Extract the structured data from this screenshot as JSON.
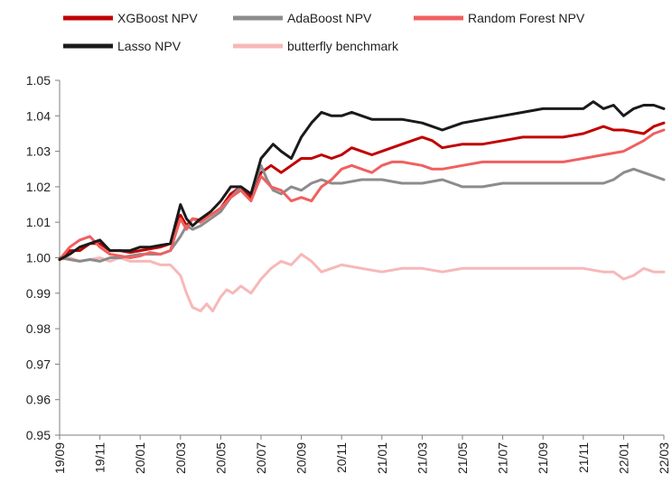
{
  "chart_data": {
    "type": "line",
    "title": "",
    "xlabel": "",
    "ylabel": "",
    "ylim": [
      0.95,
      1.05
    ],
    "yticks": [
      "1.05",
      "1.04",
      "1.03",
      "1.02",
      "1.01",
      "1.00",
      "0.99",
      "0.98",
      "0.97",
      "0.96",
      "0.95"
    ],
    "ytick_values": [
      1.05,
      1.04,
      1.03,
      1.02,
      1.01,
      1.0,
      0.99,
      0.98,
      0.97,
      0.96,
      0.95
    ],
    "xticks": [
      "19/09",
      "19/11",
      "20/01",
      "20/03",
      "20/05",
      "20/07",
      "20/09",
      "20/11",
      "21/01",
      "21/03",
      "21/05",
      "21/07",
      "21/09",
      "21/11",
      "22/01",
      "22/03"
    ],
    "x_months": [
      0,
      2,
      4,
      6,
      8,
      10,
      12,
      14,
      16,
      18,
      20,
      22,
      24,
      26,
      28,
      30
    ],
    "xlim": [
      0,
      30
    ],
    "legend_position": "top",
    "series": [
      {
        "name": "XGBoost NPV",
        "color": "#c00000",
        "width": 3,
        "x": [
          0,
          0.5,
          1,
          1.5,
          2,
          2.5,
          3,
          3.5,
          4,
          4.5,
          5,
          5.5,
          6,
          6.3,
          6.6,
          7,
          7.5,
          8,
          8.5,
          9,
          9.5,
          10,
          10.5,
          11,
          11.5,
          12,
          12.5,
          13,
          13.5,
          14,
          14.5,
          15,
          15.5,
          16,
          17,
          18,
          18.5,
          19,
          20,
          21,
          22,
          23,
          24,
          25,
          26,
          27,
          27.5,
          28,
          29,
          29.5,
          30
        ],
        "y": [
          0.9995,
          1.002,
          1.002,
          1.004,
          1.004,
          1.002,
          1.002,
          1.0015,
          1.002,
          1.0025,
          1.003,
          1.004,
          1.012,
          1.009,
          1.011,
          1.0105,
          1.012,
          1.014,
          1.018,
          1.02,
          1.017,
          1.024,
          1.026,
          1.024,
          1.026,
          1.028,
          1.028,
          1.029,
          1.028,
          1.029,
          1.031,
          1.03,
          1.029,
          1.03,
          1.032,
          1.034,
          1.033,
          1.031,
          1.032,
          1.032,
          1.033,
          1.034,
          1.034,
          1.034,
          1.035,
          1.037,
          1.036,
          1.036,
          1.035,
          1.037,
          1.038
        ]
      },
      {
        "name": "AdaBoost NPV",
        "color": "#8c8c8c",
        "width": 3,
        "x": [
          0,
          0.5,
          1,
          1.5,
          2,
          2.5,
          3,
          3.5,
          4,
          4.5,
          5,
          5.5,
          6,
          6.3,
          6.6,
          7,
          7.5,
          8,
          8.5,
          9,
          9.5,
          10,
          10.3,
          10.6,
          11,
          11.5,
          12,
          12.5,
          13,
          13.5,
          14,
          15,
          16,
          17,
          18,
          19,
          20,
          21,
          22,
          23,
          24,
          25,
          26,
          27,
          27.5,
          28,
          28.5,
          29,
          29.5,
          30
        ],
        "y": [
          1.0,
          0.9995,
          0.999,
          0.9995,
          0.999,
          1.0,
          1.0,
          1.0005,
          1.001,
          1.001,
          1.001,
          1.002,
          1.006,
          1.009,
          1.008,
          1.009,
          1.011,
          1.013,
          1.017,
          1.02,
          1.018,
          1.026,
          1.022,
          1.019,
          1.018,
          1.02,
          1.019,
          1.021,
          1.022,
          1.021,
          1.021,
          1.022,
          1.022,
          1.021,
          1.021,
          1.022,
          1.02,
          1.02,
          1.021,
          1.021,
          1.021,
          1.021,
          1.021,
          1.021,
          1.022,
          1.024,
          1.025,
          1.024,
          1.023,
          1.022
        ]
      },
      {
        "name": "Random Forest NPV",
        "color": "#f06060",
        "width": 3,
        "x": [
          0,
          0.5,
          1,
          1.5,
          2,
          2.5,
          3,
          3.5,
          4,
          4.5,
          5,
          5.5,
          6,
          6.3,
          6.6,
          7,
          7.5,
          8,
          8.5,
          9,
          9.5,
          10,
          10.5,
          11,
          11.5,
          12,
          12.5,
          13,
          13.5,
          14,
          14.5,
          15,
          15.5,
          16,
          16.5,
          17,
          18,
          18.5,
          19,
          20,
          21,
          22,
          23,
          24,
          25,
          26,
          27,
          28,
          29,
          29.5,
          30
        ],
        "y": [
          0.9995,
          1.003,
          1.005,
          1.006,
          1.003,
          1.001,
          1.0005,
          1.0,
          1.0005,
          1.0015,
          1.001,
          1.002,
          1.011,
          1.008,
          1.011,
          1.01,
          1.012,
          1.014,
          1.017,
          1.019,
          1.016,
          1.023,
          1.02,
          1.019,
          1.016,
          1.017,
          1.016,
          1.02,
          1.022,
          1.025,
          1.026,
          1.025,
          1.024,
          1.026,
          1.027,
          1.027,
          1.026,
          1.025,
          1.025,
          1.026,
          1.027,
          1.027,
          1.027,
          1.027,
          1.027,
          1.028,
          1.029,
          1.03,
          1.033,
          1.035,
          1.036
        ]
      },
      {
        "name": "Lasso NPV",
        "color": "#1a1a1a",
        "width": 3,
        "x": [
          0,
          0.5,
          1,
          1.5,
          2,
          2.5,
          3,
          3.5,
          4,
          4.5,
          5,
          5.5,
          6,
          6.3,
          6.6,
          7,
          7.5,
          8,
          8.5,
          9,
          9.5,
          10,
          10.3,
          10.6,
          11,
          11.5,
          12,
          12.5,
          13,
          13.5,
          14,
          14.5,
          15,
          15.5,
          16,
          16.5,
          17,
          18,
          18.5,
          19,
          19.5,
          20,
          21,
          22,
          23,
          24,
          25,
          26,
          26.5,
          27,
          27.5,
          28,
          28.5,
          29,
          29.5,
          30
        ],
        "y": [
          0.9995,
          1.001,
          1.003,
          1.004,
          1.005,
          1.002,
          1.002,
          1.002,
          1.003,
          1.003,
          1.0035,
          1.004,
          1.015,
          1.011,
          1.009,
          1.011,
          1.013,
          1.016,
          1.02,
          1.02,
          1.018,
          1.028,
          1.03,
          1.032,
          1.03,
          1.028,
          1.034,
          1.038,
          1.041,
          1.04,
          1.04,
          1.041,
          1.04,
          1.039,
          1.039,
          1.039,
          1.039,
          1.038,
          1.037,
          1.036,
          1.037,
          1.038,
          1.039,
          1.04,
          1.041,
          1.042,
          1.042,
          1.042,
          1.044,
          1.042,
          1.043,
          1.04,
          1.042,
          1.043,
          1.043,
          1.042
        ]
      },
      {
        "name": "butterfly benchmark",
        "color": "#f7b8b8",
        "width": 3,
        "x": [
          0,
          0.5,
          1,
          1.5,
          2,
          2.5,
          3,
          3.5,
          4,
          4.5,
          5,
          5.5,
          6,
          6.3,
          6.6,
          7,
          7.3,
          7.6,
          8,
          8.3,
          8.6,
          9,
          9.5,
          10,
          10.5,
          11,
          11.5,
          12,
          12.5,
          13,
          14,
          15,
          16,
          17,
          18,
          19,
          20,
          21,
          22,
          23,
          24,
          25,
          26,
          27,
          27.5,
          28,
          28.5,
          29,
          29.5,
          30
        ],
        "y": [
          0.9995,
          1.0,
          0.999,
          0.9995,
          1.0,
          0.999,
          1.0,
          0.999,
          0.999,
          0.999,
          0.998,
          0.998,
          0.995,
          0.99,
          0.986,
          0.985,
          0.987,
          0.985,
          0.989,
          0.991,
          0.99,
          0.992,
          0.99,
          0.994,
          0.997,
          0.999,
          0.998,
          1.001,
          0.999,
          0.996,
          0.998,
          0.997,
          0.996,
          0.997,
          0.997,
          0.996,
          0.997,
          0.997,
          0.997,
          0.997,
          0.997,
          0.997,
          0.997,
          0.996,
          0.996,
          0.994,
          0.995,
          0.997,
          0.996,
          0.996
        ]
      }
    ]
  }
}
